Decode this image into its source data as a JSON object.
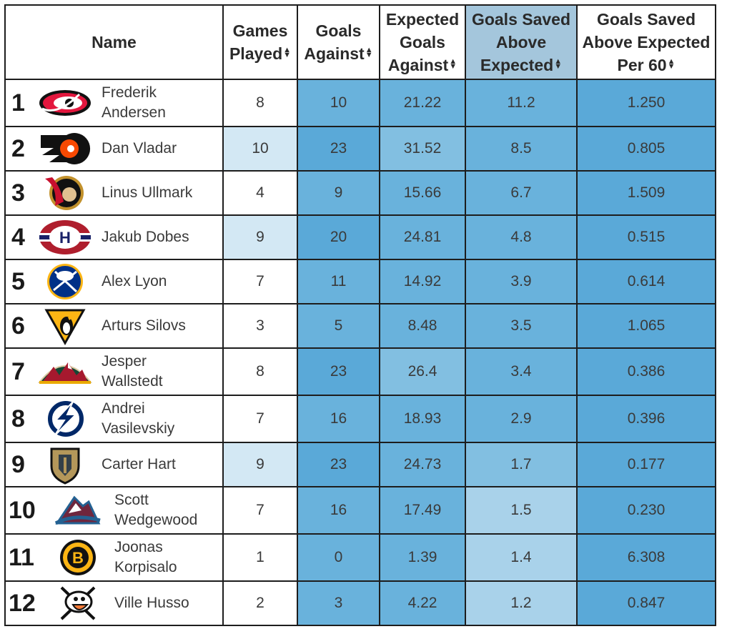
{
  "table": {
    "headers": [
      {
        "label": "Name",
        "sortable": false
      },
      {
        "label": "Games Played",
        "sortable": true
      },
      {
        "label": "Goals Against",
        "sortable": true
      },
      {
        "label": "Expected Goals Against",
        "sortable": true
      },
      {
        "label": "Goals Saved Above Expected",
        "sortable": true,
        "sorted": true
      },
      {
        "label": "Goals Saved Above Expected Per 60",
        "sortable": true
      }
    ],
    "sort_icon": "sort-updown-icon",
    "rows": [
      {
        "rank": "1",
        "team_logo": "hurricanes-logo-icon",
        "name_lines": [
          "Frederik",
          "Andersen"
        ],
        "games_played": "8",
        "goals_against": "10",
        "expected_goals_against": "21.22",
        "gsax": "11.2",
        "gsax_per_60": "1.250"
      },
      {
        "rank": "2",
        "team_logo": "flyers-logo-icon",
        "name_lines": [
          "Dan Vladar"
        ],
        "games_played": "10",
        "goals_against": "23",
        "expected_goals_against": "31.52",
        "gsax": "8.5",
        "gsax_per_60": "0.805"
      },
      {
        "rank": "3",
        "team_logo": "senators-logo-icon",
        "name_lines": [
          "Linus Ullmark"
        ],
        "games_played": "4",
        "goals_against": "9",
        "expected_goals_against": "15.66",
        "gsax": "6.7",
        "gsax_per_60": "1.509"
      },
      {
        "rank": "4",
        "team_logo": "canadiens-logo-icon",
        "name_lines": [
          "Jakub Dobes"
        ],
        "games_played": "9",
        "goals_against": "20",
        "expected_goals_against": "24.81",
        "gsax": "4.8",
        "gsax_per_60": "0.515"
      },
      {
        "rank": "5",
        "team_logo": "sabres-logo-icon",
        "name_lines": [
          "Alex Lyon"
        ],
        "games_played": "7",
        "goals_against": "11",
        "expected_goals_against": "14.92",
        "gsax": "3.9",
        "gsax_per_60": "0.614"
      },
      {
        "rank": "6",
        "team_logo": "penguins-logo-icon",
        "name_lines": [
          "Arturs Silovs"
        ],
        "games_played": "3",
        "goals_against": "5",
        "expected_goals_against": "8.48",
        "gsax": "3.5",
        "gsax_per_60": "1.065"
      },
      {
        "rank": "7",
        "team_logo": "wild-logo-icon",
        "name_lines": [
          "Jesper",
          "Wallstedt"
        ],
        "games_played": "8",
        "goals_against": "23",
        "expected_goals_against": "26.4",
        "gsax": "3.4",
        "gsax_per_60": "0.386"
      },
      {
        "rank": "8",
        "team_logo": "lightning-logo-icon",
        "name_lines": [
          "Andrei",
          "Vasilevskiy"
        ],
        "games_played": "7",
        "goals_against": "16",
        "expected_goals_against": "18.93",
        "gsax": "2.9",
        "gsax_per_60": "0.396"
      },
      {
        "rank": "9",
        "team_logo": "golden-knights-logo-icon",
        "name_lines": [
          "Carter Hart"
        ],
        "games_played": "9",
        "goals_against": "23",
        "expected_goals_against": "24.73",
        "gsax": "1.7",
        "gsax_per_60": "0.177"
      },
      {
        "rank": "10",
        "team_logo": "avalanche-logo-icon",
        "name_lines": [
          "Scott",
          "Wedgewood"
        ],
        "games_played": "7",
        "goals_against": "16",
        "expected_goals_against": "17.49",
        "gsax": "1.5",
        "gsax_per_60": "0.230"
      },
      {
        "rank": "11",
        "team_logo": "bruins-logo-icon",
        "name_lines": [
          "Joonas",
          "Korpisalo"
        ],
        "games_played": "1",
        "goals_against": "0",
        "expected_goals_against": "1.39",
        "gsax": "1.4",
        "gsax_per_60": "6.308"
      },
      {
        "rank": "12",
        "team_logo": "ducks-logo-icon",
        "name_lines": [
          "Ville Husso"
        ],
        "games_played": "2",
        "goals_against": "3",
        "expected_goals_against": "4.22",
        "gsax": "1.2",
        "gsax_per_60": "0.847"
      }
    ],
    "cell_shades": [
      [
        "white",
        "l4",
        "l4",
        "l4",
        "l5"
      ],
      [
        "l1",
        "l5",
        "l3",
        "l4",
        "l5"
      ],
      [
        "white",
        "l4",
        "l4",
        "l4",
        "l5"
      ],
      [
        "l1",
        "l5",
        "l4",
        "l4",
        "l5"
      ],
      [
        "white",
        "l4",
        "l4",
        "l4",
        "l5"
      ],
      [
        "white",
        "l4",
        "l4",
        "l4",
        "l5"
      ],
      [
        "white",
        "l5",
        "l3",
        "l4",
        "l5"
      ],
      [
        "white",
        "l4",
        "l4",
        "l4",
        "l5"
      ],
      [
        "l1",
        "l5",
        "l4",
        "l3",
        "l5"
      ],
      [
        "white",
        "l4",
        "l4",
        "l2",
        "l5"
      ],
      [
        "white",
        "l4",
        "l4",
        "l2",
        "l5"
      ],
      [
        "white",
        "l4",
        "l4",
        "l2",
        "l5"
      ]
    ],
    "shade_colors": {
      "white": "#ffffff",
      "l1": "#d3e8f4",
      "l2": "#a9d2ea",
      "l3": "#82bfe1",
      "l4": "#69b2dc",
      "l5": "#5aa9d8",
      "sorted_header": "#a4c6dc"
    }
  }
}
